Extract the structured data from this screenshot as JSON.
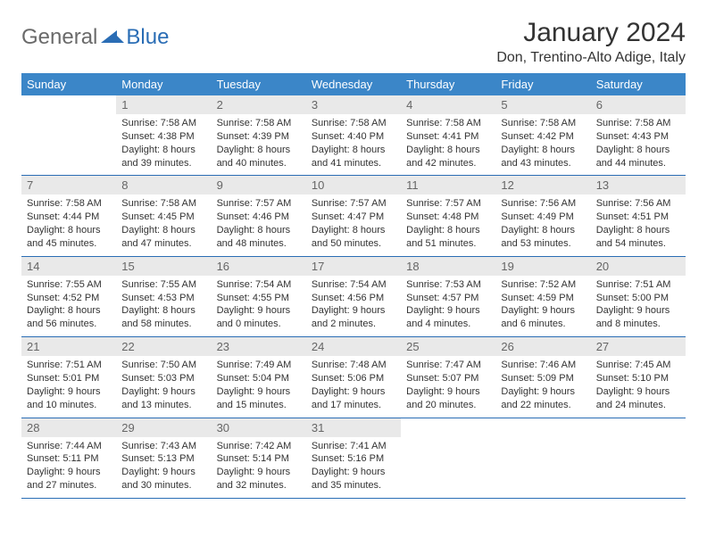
{
  "brand": {
    "first": "General",
    "second": "Blue"
  },
  "title": "January 2024",
  "location": "Don, Trentino-Alto Adige, Italy",
  "colors": {
    "header_bg": "#3b86c8",
    "header_text": "#ffffff",
    "daynum_bg": "#e9e9e9",
    "row_border": "#2a6db5",
    "brand_gray": "#6a6a6a",
    "brand_blue": "#2a6db5"
  },
  "day_headers": [
    "Sunday",
    "Monday",
    "Tuesday",
    "Wednesday",
    "Thursday",
    "Friday",
    "Saturday"
  ],
  "weeks": [
    [
      {
        "n": "",
        "sr": "",
        "ss": "",
        "dl": ""
      },
      {
        "n": "1",
        "sr": "7:58 AM",
        "ss": "4:38 PM",
        "dl": "8 hours and 39 minutes."
      },
      {
        "n": "2",
        "sr": "7:58 AM",
        "ss": "4:39 PM",
        "dl": "8 hours and 40 minutes."
      },
      {
        "n": "3",
        "sr": "7:58 AM",
        "ss": "4:40 PM",
        "dl": "8 hours and 41 minutes."
      },
      {
        "n": "4",
        "sr": "7:58 AM",
        "ss": "4:41 PM",
        "dl": "8 hours and 42 minutes."
      },
      {
        "n": "5",
        "sr": "7:58 AM",
        "ss": "4:42 PM",
        "dl": "8 hours and 43 minutes."
      },
      {
        "n": "6",
        "sr": "7:58 AM",
        "ss": "4:43 PM",
        "dl": "8 hours and 44 minutes."
      }
    ],
    [
      {
        "n": "7",
        "sr": "7:58 AM",
        "ss": "4:44 PM",
        "dl": "8 hours and 45 minutes."
      },
      {
        "n": "8",
        "sr": "7:58 AM",
        "ss": "4:45 PM",
        "dl": "8 hours and 47 minutes."
      },
      {
        "n": "9",
        "sr": "7:57 AM",
        "ss": "4:46 PM",
        "dl": "8 hours and 48 minutes."
      },
      {
        "n": "10",
        "sr": "7:57 AM",
        "ss": "4:47 PM",
        "dl": "8 hours and 50 minutes."
      },
      {
        "n": "11",
        "sr": "7:57 AM",
        "ss": "4:48 PM",
        "dl": "8 hours and 51 minutes."
      },
      {
        "n": "12",
        "sr": "7:56 AM",
        "ss": "4:49 PM",
        "dl": "8 hours and 53 minutes."
      },
      {
        "n": "13",
        "sr": "7:56 AM",
        "ss": "4:51 PM",
        "dl": "8 hours and 54 minutes."
      }
    ],
    [
      {
        "n": "14",
        "sr": "7:55 AM",
        "ss": "4:52 PM",
        "dl": "8 hours and 56 minutes."
      },
      {
        "n": "15",
        "sr": "7:55 AM",
        "ss": "4:53 PM",
        "dl": "8 hours and 58 minutes."
      },
      {
        "n": "16",
        "sr": "7:54 AM",
        "ss": "4:55 PM",
        "dl": "9 hours and 0 minutes."
      },
      {
        "n": "17",
        "sr": "7:54 AM",
        "ss": "4:56 PM",
        "dl": "9 hours and 2 minutes."
      },
      {
        "n": "18",
        "sr": "7:53 AM",
        "ss": "4:57 PM",
        "dl": "9 hours and 4 minutes."
      },
      {
        "n": "19",
        "sr": "7:52 AM",
        "ss": "4:59 PM",
        "dl": "9 hours and 6 minutes."
      },
      {
        "n": "20",
        "sr": "7:51 AM",
        "ss": "5:00 PM",
        "dl": "9 hours and 8 minutes."
      }
    ],
    [
      {
        "n": "21",
        "sr": "7:51 AM",
        "ss": "5:01 PM",
        "dl": "9 hours and 10 minutes."
      },
      {
        "n": "22",
        "sr": "7:50 AM",
        "ss": "5:03 PM",
        "dl": "9 hours and 13 minutes."
      },
      {
        "n": "23",
        "sr": "7:49 AM",
        "ss": "5:04 PM",
        "dl": "9 hours and 15 minutes."
      },
      {
        "n": "24",
        "sr": "7:48 AM",
        "ss": "5:06 PM",
        "dl": "9 hours and 17 minutes."
      },
      {
        "n": "25",
        "sr": "7:47 AM",
        "ss": "5:07 PM",
        "dl": "9 hours and 20 minutes."
      },
      {
        "n": "26",
        "sr": "7:46 AM",
        "ss": "5:09 PM",
        "dl": "9 hours and 22 minutes."
      },
      {
        "n": "27",
        "sr": "7:45 AM",
        "ss": "5:10 PM",
        "dl": "9 hours and 24 minutes."
      }
    ],
    [
      {
        "n": "28",
        "sr": "7:44 AM",
        "ss": "5:11 PM",
        "dl": "9 hours and 27 minutes."
      },
      {
        "n": "29",
        "sr": "7:43 AM",
        "ss": "5:13 PM",
        "dl": "9 hours and 30 minutes."
      },
      {
        "n": "30",
        "sr": "7:42 AM",
        "ss": "5:14 PM",
        "dl": "9 hours and 32 minutes."
      },
      {
        "n": "31",
        "sr": "7:41 AM",
        "ss": "5:16 PM",
        "dl": "9 hours and 35 minutes."
      },
      {
        "n": "",
        "sr": "",
        "ss": "",
        "dl": ""
      },
      {
        "n": "",
        "sr": "",
        "ss": "",
        "dl": ""
      },
      {
        "n": "",
        "sr": "",
        "ss": "",
        "dl": ""
      }
    ]
  ],
  "labels": {
    "sunrise": "Sunrise:",
    "sunset": "Sunset:",
    "daylight": "Daylight:"
  }
}
